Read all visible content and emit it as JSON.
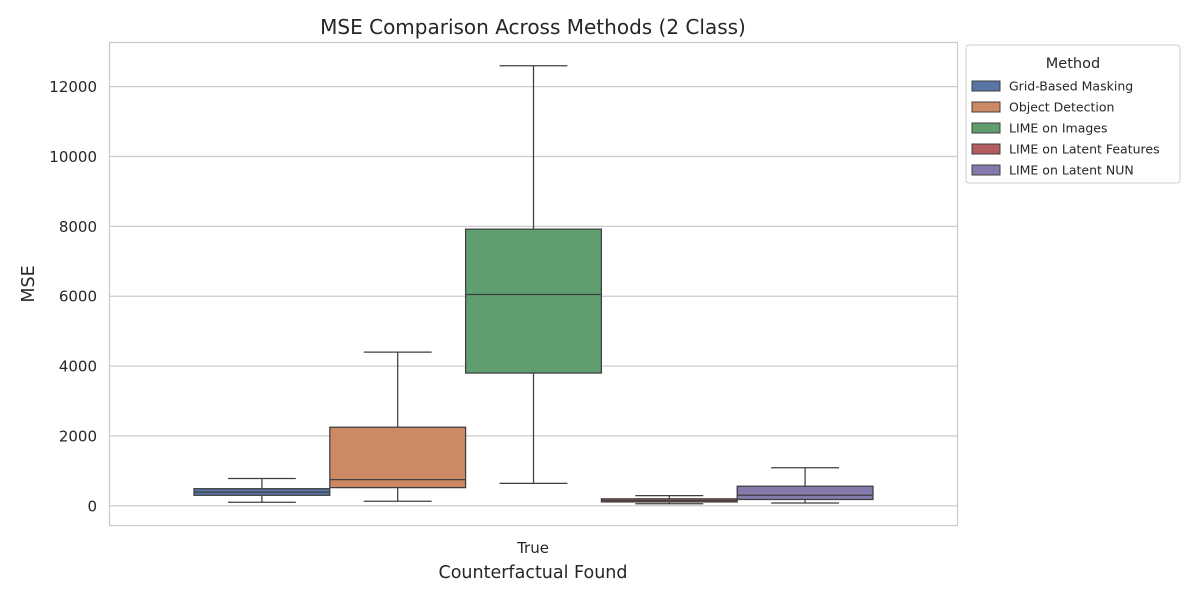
{
  "chart_data": {
    "type": "box",
    "title": "MSE Comparison Across Methods (2 Class)",
    "xlabel": "Counterfactual Found",
    "ylabel": "MSE",
    "categories": [
      "True"
    ],
    "ylim": [
      -550,
      13250
    ],
    "yticks": [
      0,
      2000,
      4000,
      6000,
      8000,
      10000,
      12000
    ],
    "grid": true,
    "legend": {
      "title": "Method",
      "placement": "outside-top-right"
    },
    "series": [
      {
        "name": "Grid-Based Masking",
        "color": "#5875a4",
        "whisker_low": 100,
        "q1": 300,
        "median": 390,
        "q3": 490,
        "whisker_high": 780
      },
      {
        "name": "Object Detection",
        "color": "#cc8963",
        "whisker_low": 130,
        "q1": 520,
        "median": 750,
        "q3": 2250,
        "whisker_high": 4400
      },
      {
        "name": "LIME on Images",
        "color": "#5f9e6e",
        "whisker_low": 640,
        "q1": 3800,
        "median": 6050,
        "q3": 7920,
        "whisker_high": 12600
      },
      {
        "name": "LIME on Latent Features",
        "color": "#b55d60",
        "whisker_low": 60,
        "q1": 110,
        "median": 150,
        "q3": 200,
        "whisker_high": 290
      },
      {
        "name": "LIME on Latent NUN",
        "color": "#857aab",
        "whisker_low": 80,
        "q1": 180,
        "median": 300,
        "q3": 560,
        "whisker_high": 1090
      }
    ]
  }
}
